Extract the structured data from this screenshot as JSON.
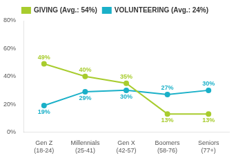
{
  "chart_data": {
    "type": "line",
    "categories": [
      "Gen Z\n(18-24)",
      "Millennials\n(25-41)",
      "Gen X\n(42-57)",
      "Boomers\n(58-76)",
      "Seniors\n(77+)"
    ],
    "series": [
      {
        "name": "GIVING (Avg.: 54%)",
        "color": "#a8cc2e",
        "values": [
          49,
          40,
          35,
          13,
          13
        ],
        "value_labels": [
          "49%",
          "40%",
          "35%",
          "13%",
          "13%"
        ]
      },
      {
        "name": "VOLUNTEERING (Avg.: 24%)",
        "color": "#1ab0c8",
        "values": [
          19,
          29,
          30,
          27,
          30
        ],
        "value_labels": [
          "19%",
          "29%",
          "30%",
          "27%",
          "30%"
        ]
      }
    ],
    "ylim": [
      0,
      80
    ],
    "yticks": [
      {
        "value": 0,
        "label": "0%"
      },
      {
        "value": 20,
        "label": "20%"
      },
      {
        "value": 40,
        "label": "40%"
      },
      {
        "value": 60,
        "label": "60%"
      },
      {
        "value": 80,
        "label": "80%"
      }
    ],
    "grid": false,
    "legend": "top",
    "data_labels": true,
    "marker": "circle"
  }
}
